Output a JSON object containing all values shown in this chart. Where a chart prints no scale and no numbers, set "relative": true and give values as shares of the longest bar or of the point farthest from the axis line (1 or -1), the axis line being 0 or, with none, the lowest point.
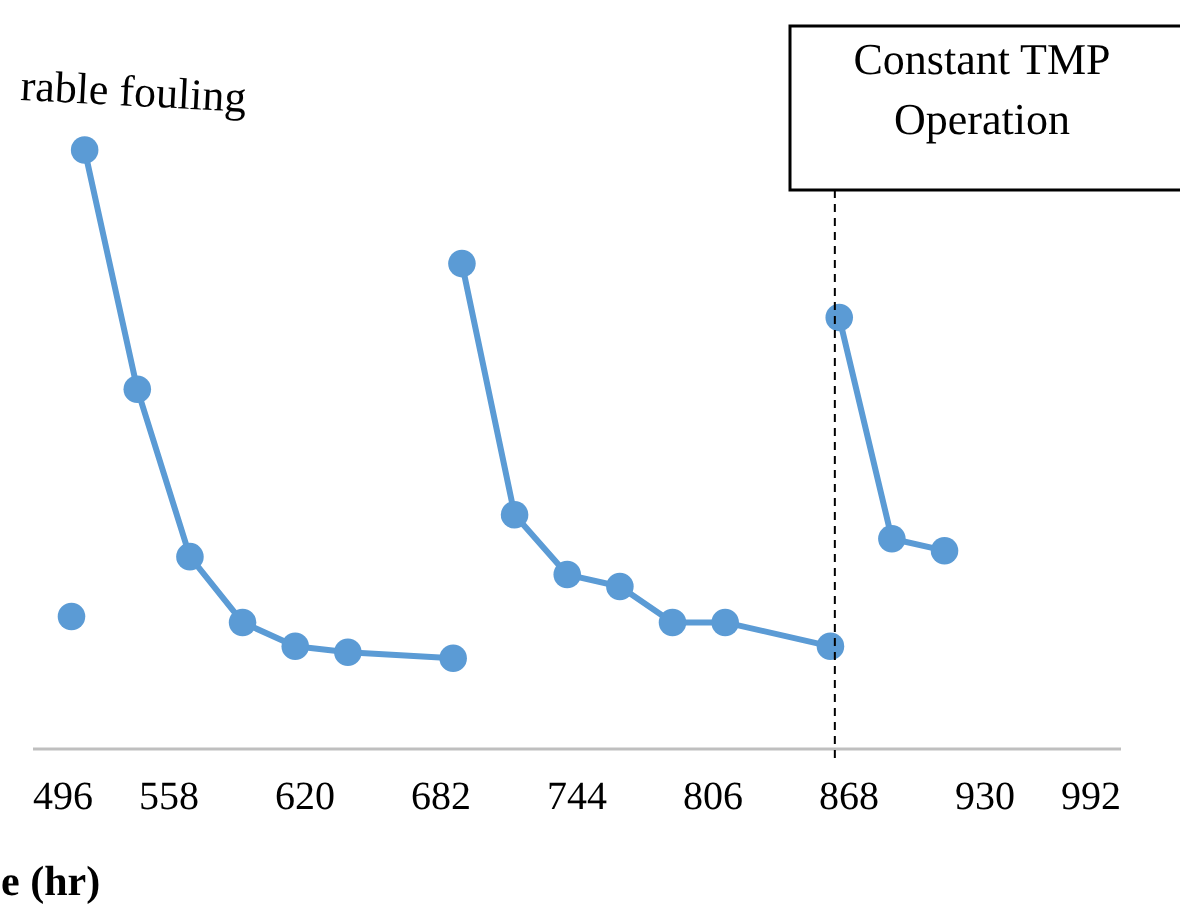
{
  "chart_data": {
    "type": "line",
    "relative": true,
    "xlabel": "e (hr)",
    "xlim": [
      496,
      992
    ],
    "xticks": [
      496,
      558,
      620,
      682,
      744,
      806,
      868,
      930,
      992
    ],
    "series": [
      {
        "color": "#5b9bd5",
        "x": [
          514
        ],
        "values": [
          0.22
        ]
      },
      {
        "color": "#5b9bd5",
        "x": [
          520,
          544,
          568,
          592,
          616,
          640,
          688
        ],
        "values": [
          1,
          0.6,
          0.32,
          0.21,
          0.17,
          0.16,
          0.15
        ]
      },
      {
        "color": "#5b9bd5",
        "x": [
          692,
          716,
          740,
          764,
          788,
          812,
          860
        ],
        "values": [
          0.81,
          0.39,
          0.29,
          0.27,
          0.21,
          0.21,
          0.17
        ]
      },
      {
        "color": "#5b9bd5",
        "x": [
          864,
          888,
          912
        ],
        "values": [
          0.72,
          0.35,
          0.33
        ]
      }
    ],
    "ref_lines": [
      {
        "axis": "x",
        "value": 862,
        "label": "Constant TMP\nOperation",
        "line_style": "dashed"
      }
    ],
    "annotations": [
      "rable fouling"
    ],
    "marker": "circle",
    "grid": false,
    "legend": false
  }
}
